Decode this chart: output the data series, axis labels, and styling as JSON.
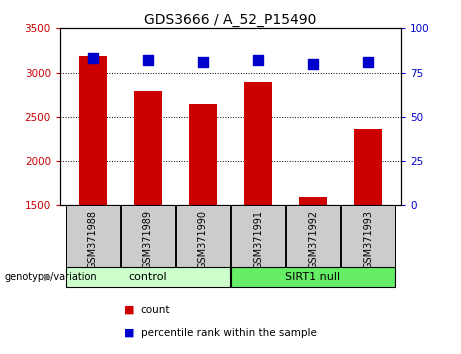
{
  "title": "GDS3666 / A_52_P15490",
  "samples": [
    "GSM371988",
    "GSM371989",
    "GSM371990",
    "GSM371991",
    "GSM371992",
    "GSM371993"
  ],
  "counts": [
    3190,
    2790,
    2650,
    2890,
    1590,
    2360
  ],
  "percentiles": [
    83,
    82,
    81,
    82,
    80,
    81
  ],
  "ylim_left": [
    1500,
    3500
  ],
  "ylim_right": [
    0,
    100
  ],
  "bar_color": "#cc0000",
  "dot_color": "#0000cc",
  "yticks_left": [
    1500,
    2000,
    2500,
    3000,
    3500
  ],
  "yticks_right": [
    0,
    25,
    50,
    75,
    100
  ],
  "control_label": "control",
  "sirt1_label": "SIRT1 null",
  "group_label": "genotype/variation",
  "legend_count": "count",
  "legend_percentile": "percentile rank within the sample",
  "control_color": "#ccffcc",
  "sirt1_color": "#66ee66",
  "xlabel_bg": "#cccccc",
  "background_color": "#ffffff",
  "bar_width": 0.5,
  "dot_size": 45,
  "title_fontsize": 10,
  "tick_fontsize": 7.5,
  "sample_fontsize": 7,
  "group_fontsize": 8,
  "legend_fontsize": 7.5
}
